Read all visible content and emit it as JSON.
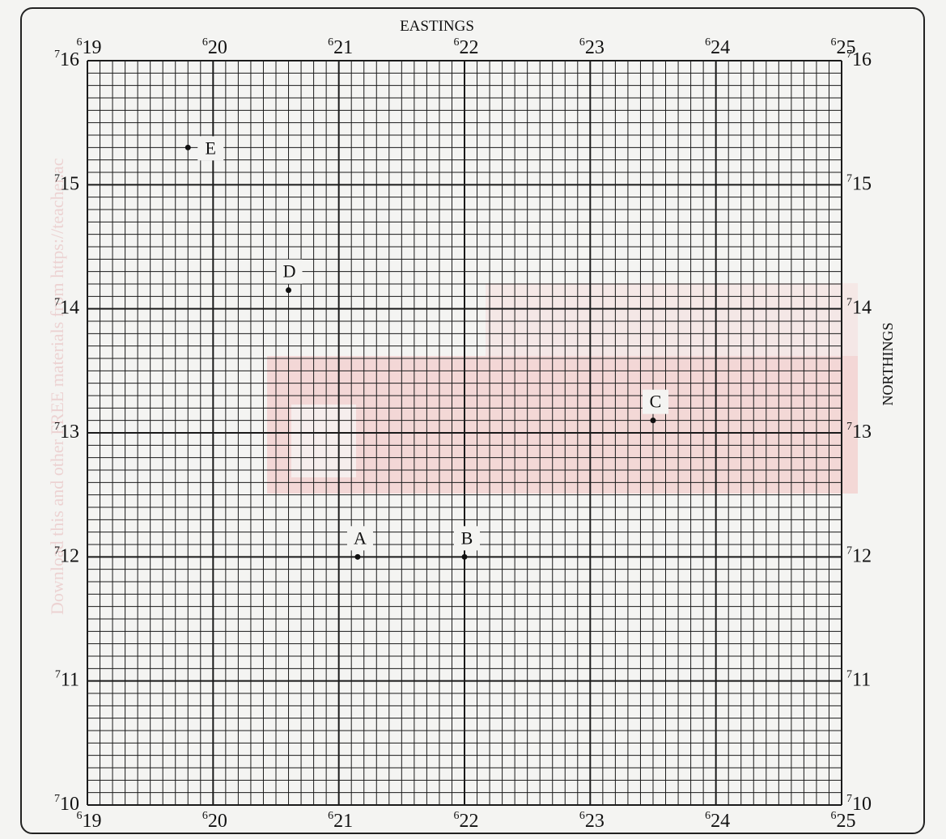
{
  "map": {
    "top_title": "EASTINGS",
    "side_title": "NORTHINGS",
    "eastings": [
      {
        "sup": "6",
        "num": "19"
      },
      {
        "sup": "6",
        "num": "20"
      },
      {
        "sup": "6",
        "num": "21"
      },
      {
        "sup": "6",
        "num": "22"
      },
      {
        "sup": "6",
        "num": "23"
      },
      {
        "sup": "6",
        "num": "24"
      },
      {
        "sup": "6",
        "num": "25"
      }
    ],
    "northings": [
      {
        "sup": "7",
        "num": "10"
      },
      {
        "sup": "7",
        "num": "11"
      },
      {
        "sup": "7",
        "num": "12"
      },
      {
        "sup": "7",
        "num": "13"
      },
      {
        "sup": "7",
        "num": "14"
      },
      {
        "sup": "7",
        "num": "15"
      },
      {
        "sup": "7",
        "num": "16"
      }
    ],
    "easting_range": [
      619,
      625
    ],
    "northing_range": [
      710,
      716
    ],
    "minor_divisions": 10,
    "points": [
      {
        "label": "A",
        "e": 621.15,
        "n": 712.0
      },
      {
        "label": "B",
        "e": 622.0,
        "n": 712.0
      },
      {
        "label": "C",
        "e": 623.5,
        "n": 713.1
      },
      {
        "label": "D",
        "e": 620.6,
        "n": 714.15
      },
      {
        "label": "E",
        "e": 619.8,
        "n": 715.3
      }
    ],
    "watermark": "Download this and other FREE materials from https://teacher.ac"
  },
  "colors": {
    "grid": "#1a1a1a",
    "paper": "#f4f4f2",
    "watermark_red": "#f0b8b8"
  }
}
